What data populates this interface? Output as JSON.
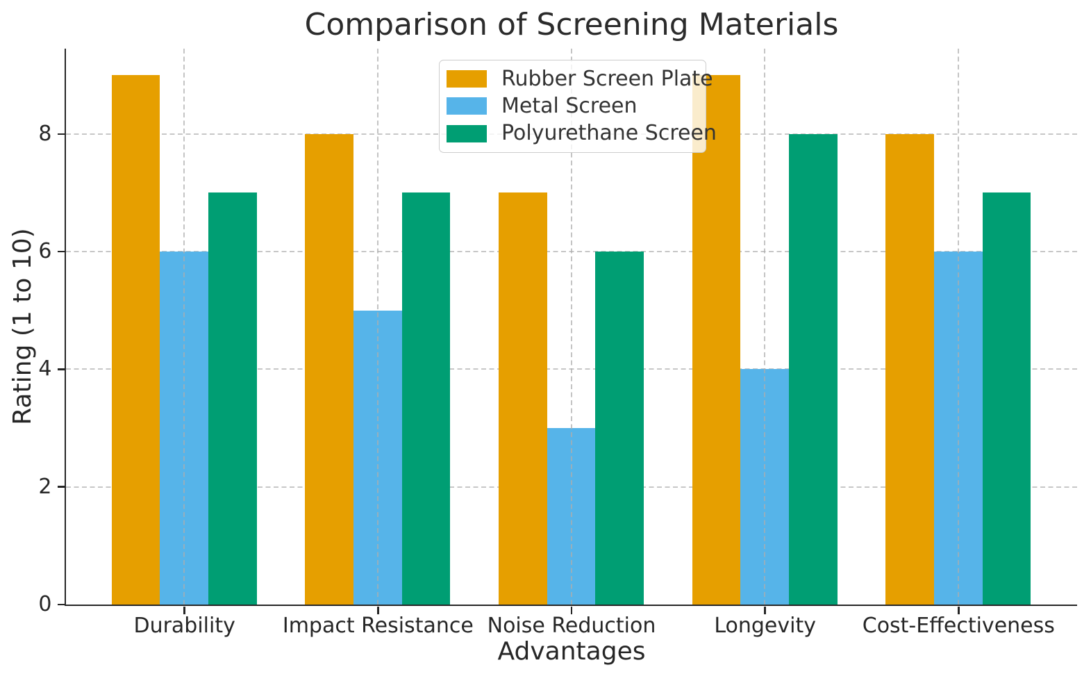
{
  "chart_data": {
    "type": "bar",
    "title": "Comparison of Screening Materials",
    "xlabel": "Advantages",
    "ylabel": "Rating (1 to 10)",
    "categories": [
      "Durability",
      "Impact Resistance",
      "Noise Reduction",
      "Longevity",
      "Cost-Effectiveness"
    ],
    "series": [
      {
        "name": "Rubber Screen Plate",
        "color": "#E69F00",
        "values": [
          9,
          8,
          7,
          9,
          8
        ]
      },
      {
        "name": "Metal Screen",
        "color": "#56B4E9",
        "values": [
          6,
          5,
          3,
          4,
          6
        ]
      },
      {
        "name": "Polyurethane Screen",
        "color": "#009E73",
        "values": [
          7,
          7,
          6,
          8,
          7
        ]
      }
    ],
    "bar_width": 0.25,
    "yticks": [
      0,
      2,
      4,
      6,
      8
    ],
    "ylim": [
      0,
      9.45
    ],
    "xlim": [
      -0.6125,
      4.6125
    ],
    "grid": {
      "visible": true,
      "style": "dashed",
      "color": "#c7c7c7",
      "horizontal_behind_bars": true,
      "vertical_above_bars": true
    },
    "legend": {
      "position": "upper center",
      "background": "#ffffff",
      "border_color": "#cccccc",
      "opacity": 0.8
    },
    "axis_color": "#262626",
    "spines": [
      "left",
      "bottom"
    ]
  }
}
